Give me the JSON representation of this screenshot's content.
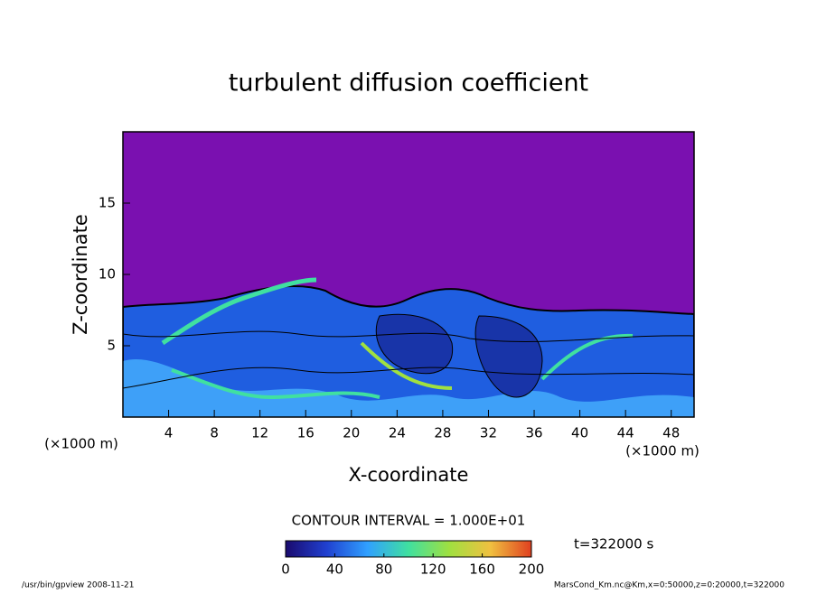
{
  "chart_data": {
    "type": "contour",
    "title": "turbulent diffusion coefficient",
    "xlabel": "X-coordinate",
    "ylabel": "Z-coordinate",
    "x_unit_label": "(×1000 m)",
    "xlim": [
      0,
      50
    ],
    "xticks": [
      4,
      8,
      12,
      16,
      20,
      24,
      28,
      32,
      36,
      40,
      44,
      48
    ],
    "ylim": [
      0,
      20
    ],
    "yticks": [
      5,
      10,
      15
    ],
    "contour_interval_label": "CONTOUR INTERVAL = 1.000E+01",
    "time_label": "t=322000 s",
    "colorbar": {
      "lim": [
        0,
        200
      ],
      "ticks": [
        0,
        40,
        80,
        120,
        160,
        200
      ],
      "colors": [
        "#1a0a6e",
        "#2040d0",
        "#30a0ff",
        "#40e0a0",
        "#a0e040",
        "#f0c040",
        "#e04020"
      ]
    },
    "footer_left": "/usr/bin/gpview   2008-11-21",
    "footer_right": "MarsCond_Km.nc@Km,x=0:50000,z=0:20000,t=322000"
  }
}
